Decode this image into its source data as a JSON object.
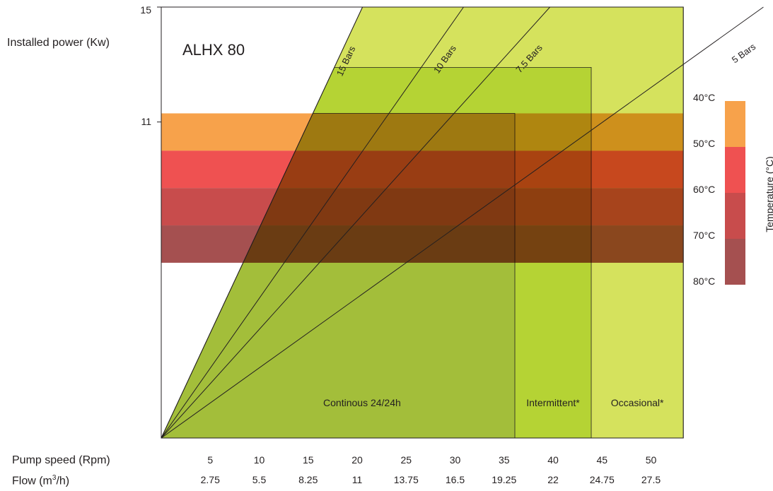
{
  "chart_data": {
    "type": "area",
    "title": "ALHX 80",
    "ylabel": "Installed power (Kw)",
    "y_ticks": [
      "15",
      "11"
    ],
    "xlabel_speed": "Pump speed (Rpm)",
    "xlabel_flow": "Flow (m³/h)",
    "flow_label_parts": {
      "pre": "Flow (m",
      "sup": "3",
      "post": "/h)"
    },
    "speed_ticks": [
      5,
      10,
      15,
      20,
      25,
      30,
      35,
      40,
      45,
      50
    ],
    "flow_ticks": [
      "2.75",
      "5.5",
      "8.25",
      "11",
      "13.75",
      "16.5",
      "19.25",
      "22",
      "24.75",
      "27.5"
    ],
    "x_range_rpm": [
      0,
      53.3
    ],
    "y_range_kw": [
      0,
      15
    ],
    "pressure_lines": [
      {
        "label": "15 Bars",
        "kw_at_50rpm": 36.5
      },
      {
        "label": "10 Bars",
        "kw_at_50rpm": 24.3
      },
      {
        "label": "7.5 Bars",
        "kw_at_50rpm": 18.9
      },
      {
        "label": "5 Bars",
        "kw_at_50rpm": 12.2
      }
    ],
    "zones": [
      {
        "label": "Continous 24/24h",
        "max_rpm": 36.1,
        "max_kw": 11.3,
        "color": "#a3be3a"
      },
      {
        "label": "Intermittent*",
        "max_rpm": 43.9,
        "max_kw": 12.9,
        "color": "#b5d334"
      },
      {
        "label": "Occasional*",
        "max_rpm": 53.3,
        "max_kw": 15,
        "color": "#d5e25d"
      }
    ],
    "temperature_bands": [
      {
        "label": "40°C",
        "upper_kw": 11.3,
        "lower_kw": 10.0,
        "color": "#f7a24b"
      },
      {
        "label": "50°C",
        "upper_kw": 10.0,
        "lower_kw": 8.7,
        "color": "#ef5151"
      },
      {
        "label": "60°C",
        "upper_kw": 8.7,
        "lower_kw": 7.4,
        "color": "#c84c4c"
      },
      {
        "label": "70°C",
        "upper_kw": 7.4,
        "lower_kw": 6.1,
        "color": "#a55050"
      }
    ],
    "temperature_labels": [
      "40°C",
      "50°C",
      "60°C",
      "70°C",
      "80°C"
    ],
    "legend_title": "Temperature (°C)"
  }
}
